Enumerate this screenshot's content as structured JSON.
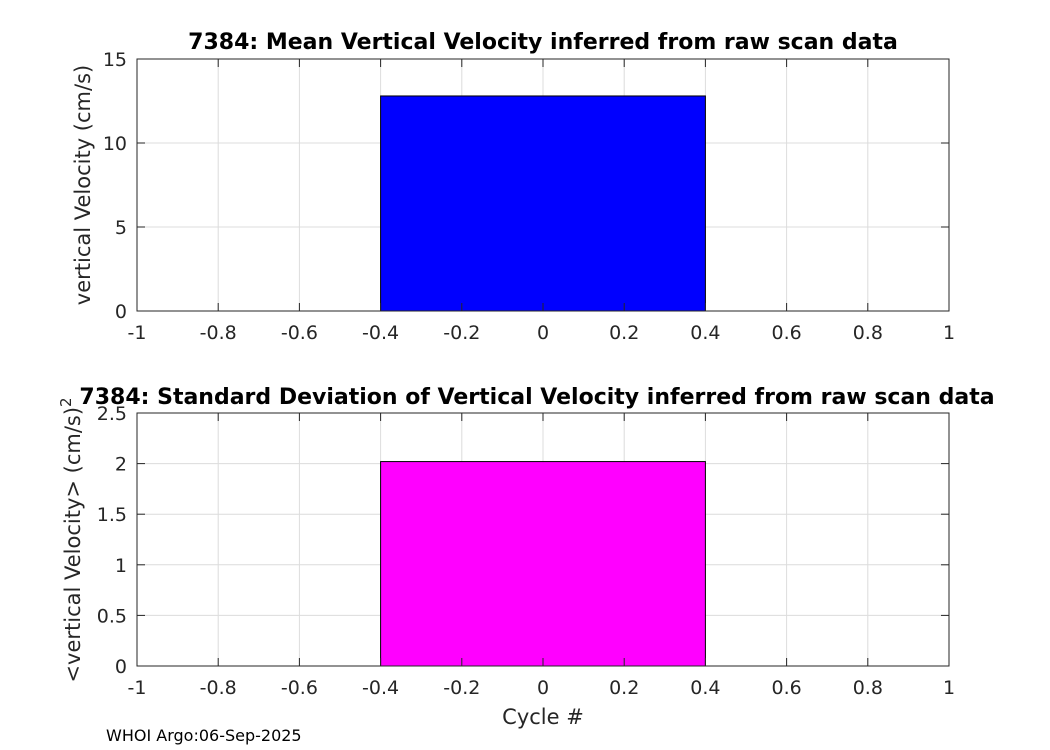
{
  "chart_data": [
    {
      "type": "bar",
      "title": "7384: Mean Vertical Velocity inferred from raw scan data",
      "xlabel": "",
      "ylabel": "vertical Velocity (cm/s)",
      "xlim": [
        -1,
        1
      ],
      "ylim": [
        0,
        15
      ],
      "xticks": [
        -1,
        -0.8,
        -0.6,
        -0.4,
        -0.2,
        0,
        0.2,
        0.4,
        0.6,
        0.8,
        1
      ],
      "xtick_labels": [
        "-1",
        "-0.8",
        "-0.6",
        "-0.4",
        "-0.2",
        "0",
        "0.2",
        "0.4",
        "0.6",
        "0.8",
        "1"
      ],
      "yticks": [
        0,
        5,
        10,
        15
      ],
      "ytick_labels": [
        "0",
        "5",
        "10",
        "15"
      ],
      "grid": true,
      "bar_width": 0.8,
      "bar_color": "#0000ff",
      "x": [
        0
      ],
      "values": [
        12.8
      ]
    },
    {
      "type": "bar",
      "title": "7384: Standard Deviation of Vertical Velocity inferred from raw scan data",
      "xlabel": "Cycle #",
      "ylabel": "<vertical Velocity> (cm/s)",
      "ylabel_superscript": "2",
      "xlim": [
        -1,
        1
      ],
      "ylim": [
        0,
        2.5
      ],
      "xticks": [
        -1,
        -0.8,
        -0.6,
        -0.4,
        -0.2,
        0,
        0.2,
        0.4,
        0.6,
        0.8,
        1
      ],
      "xtick_labels": [
        "-1",
        "-0.8",
        "-0.6",
        "-0.4",
        "-0.2",
        "0",
        "0.2",
        "0.4",
        "0.6",
        "0.8",
        "1"
      ],
      "yticks": [
        0,
        0.5,
        1,
        1.5,
        2,
        2.5
      ],
      "ytick_labels": [
        "0",
        "0.5",
        "1",
        "1.5",
        "2",
        "2.5"
      ],
      "grid": true,
      "bar_width": 0.8,
      "bar_color": "#ff00ff",
      "x": [
        0
      ],
      "values": [
        2.02
      ]
    }
  ],
  "footer": {
    "text": "WHOI Argo:06-Sep-2025"
  }
}
